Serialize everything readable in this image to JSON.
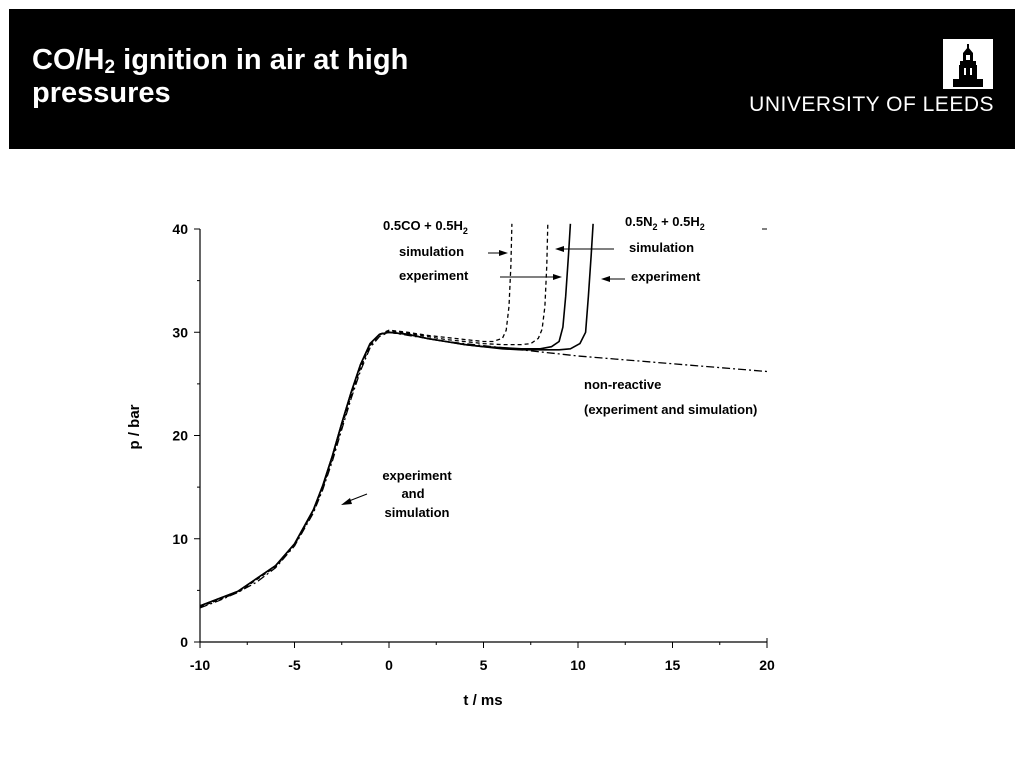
{
  "slide": {
    "title_line1_prefix": "CO/H",
    "title_line1_sub": "2",
    "title_line1_suffix": " ignition in air at high",
    "title_line2": "pressures",
    "university": "UNIVERSITY OF LEEDS"
  },
  "chart_data": {
    "type": "line",
    "xlabel": "t / ms",
    "ylabel": "p / bar",
    "xlim": [
      -10,
      20
    ],
    "ylim": [
      0,
      40
    ],
    "x_ticks": [
      "-10",
      "-5",
      "0",
      "5",
      "10",
      "15",
      "20"
    ],
    "y_ticks": [
      "0",
      "10",
      "20",
      "30",
      "40"
    ],
    "grid": false,
    "annotations": {
      "co_prefix": "0.5CO + 0.5H",
      "co_sub": "2",
      "co_simulation": "simulation",
      "co_experiment": "experiment",
      "n2_prefix": "0.5N",
      "n2_sub1": "2",
      "n2_mid": " + 0.5H",
      "n2_sub2": "2",
      "n2_simulation": "simulation",
      "n2_experiment": "experiment",
      "nonreactive_1": "non-reactive",
      "nonreactive_2": "(experiment and simulation)",
      "compression_1": "experiment",
      "compression_2": "and",
      "compression_3": "simulation"
    },
    "series": [
      {
        "style": "dashdot",
        "x": [
          -10,
          -9,
          -8,
          -7,
          -6,
          -5,
          -4,
          -3.5,
          -3,
          -2.5,
          -2,
          -1.5,
          -1,
          -0.5,
          0,
          1,
          2,
          3,
          4,
          5,
          6,
          7,
          8,
          9,
          10,
          12,
          14,
          16,
          18,
          20
        ],
        "y": [
          3.3,
          4.0,
          4.8,
          5.8,
          7.2,
          9.3,
          12.5,
          14.8,
          17.5,
          20.6,
          23.6,
          26.3,
          28.5,
          29.6,
          30.0,
          29.7,
          29.4,
          29.1,
          28.9,
          28.7,
          28.5,
          28.3,
          28.1,
          27.9,
          27.7,
          27.4,
          27.1,
          26.8,
          26.5,
          26.2
        ]
      },
      {
        "style": "dashed",
        "x": [
          -10,
          -8,
          -6,
          -5,
          -4,
          -3.5,
          -3,
          -2.5,
          -2,
          -1.5,
          -1,
          -0.5,
          0,
          1,
          2,
          3,
          4,
          5,
          5.5,
          6,
          6.2,
          6.35,
          6.45,
          6.5
        ],
        "y": [
          3.4,
          4.8,
          7.3,
          9.4,
          12.7,
          15.0,
          17.8,
          20.9,
          23.9,
          26.6,
          28.7,
          29.8,
          30.2,
          30.0,
          29.7,
          29.5,
          29.3,
          29.1,
          29.1,
          29.4,
          30.2,
          32.5,
          36.5,
          40.5
        ]
      },
      {
        "style": "dashed",
        "x": [
          -10,
          -8,
          -6,
          -5,
          -4,
          -3.5,
          -3,
          -2.5,
          -2,
          -1.5,
          -1,
          -0.5,
          0,
          1,
          2,
          3,
          4,
          5,
          6,
          7,
          7.5,
          7.9,
          8.1,
          8.25,
          8.35,
          8.4
        ],
        "y": [
          3.4,
          4.8,
          7.3,
          9.4,
          12.7,
          15.0,
          17.8,
          20.9,
          23.9,
          26.6,
          28.7,
          29.8,
          30.1,
          29.9,
          29.6,
          29.3,
          29.1,
          28.9,
          28.8,
          28.8,
          28.9,
          29.4,
          30.3,
          32.5,
          36.5,
          40.5
        ]
      },
      {
        "style": "solid",
        "x": [
          -10,
          -8,
          -6,
          -5,
          -4,
          -3.5,
          -3,
          -2.5,
          -2,
          -1.5,
          -1,
          -0.5,
          0,
          1,
          2,
          3,
          4,
          5,
          6,
          7,
          8,
          8.6,
          9.0,
          9.2,
          9.35,
          9.5,
          9.6
        ],
        "y": [
          3.5,
          4.9,
          7.4,
          9.5,
          12.8,
          15.2,
          18.0,
          21.2,
          24.2,
          26.9,
          28.9,
          29.8,
          30.0,
          29.8,
          29.4,
          29.1,
          28.8,
          28.6,
          28.5,
          28.4,
          28.4,
          28.6,
          29.1,
          30.5,
          33.5,
          37.5,
          40.5
        ]
      },
      {
        "style": "solid",
        "x": [
          -10,
          -8,
          -6,
          -5,
          -4,
          -3.5,
          -3,
          -2.5,
          -2,
          -1.5,
          -1,
          -0.5,
          0,
          1,
          2,
          3,
          4,
          5,
          6,
          7,
          8,
          9,
          9.6,
          10.1,
          10.4,
          10.55,
          10.7,
          10.8
        ],
        "y": [
          3.5,
          4.9,
          7.4,
          9.5,
          12.8,
          15.2,
          18.0,
          21.2,
          24.2,
          26.9,
          28.9,
          29.8,
          30.0,
          29.8,
          29.4,
          29.1,
          28.8,
          28.6,
          28.4,
          28.3,
          28.3,
          28.3,
          28.4,
          28.9,
          30.0,
          33.5,
          37.5,
          40.5
        ]
      }
    ]
  }
}
